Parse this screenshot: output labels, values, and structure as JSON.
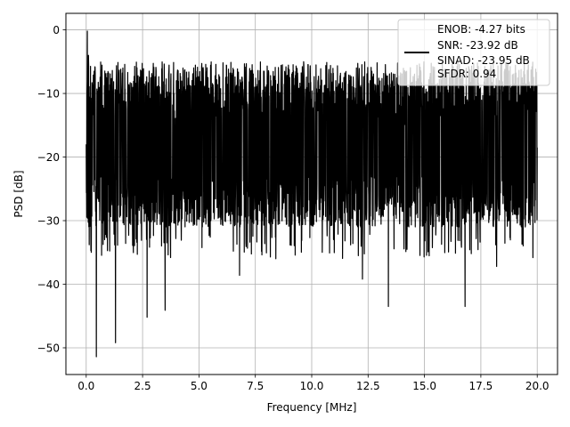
{
  "chart_data": {
    "type": "line",
    "title": "",
    "xlabel": "Frequency [MHz]",
    "ylabel": "PSD [dB]",
    "xlim": [
      -0.9,
      20.9
    ],
    "ylim": [
      -54.2,
      2.6
    ],
    "grid": true,
    "line_color": "#000000",
    "x_ticks": [
      0.0,
      2.5,
      5.0,
      7.5,
      10.0,
      12.5,
      15.0,
      17.5,
      20.0
    ],
    "x_tick_labels": [
      "0.0",
      "2.5",
      "5.0",
      "7.5",
      "10.0",
      "12.5",
      "15.0",
      "17.5",
      "20.0"
    ],
    "y_ticks": [
      0,
      -10,
      -20,
      -30,
      -40,
      -50
    ],
    "y_tick_labels": [
      "0",
      "−10",
      "−20",
      "−30",
      "−40",
      "−50"
    ],
    "legend": {
      "placement": "top-right",
      "entries": [
        "ENOB: -4.27 bits",
        "SNR: -23.92 dB",
        "SINAD: -23.95 dB",
        "SFDR: 0.94"
      ]
    },
    "series": [
      {
        "description_values": "dense noise spectrum; representative per-bin values",
        "x": [
          0.0,
          0.05,
          0.1,
          0.45,
          1.3,
          2.7,
          3.5,
          6.8,
          12.25,
          13.4,
          16.8,
          18.2,
          20.0
        ],
        "y": [
          -18.0,
          -0.2,
          -4.0,
          -51.4,
          -49.2,
          -45.2,
          -44.1,
          -38.6,
          -39.2,
          -43.5,
          -43.5,
          -37.2,
          -18.5
        ],
        "noise_band": {
          "x_start": 0.0,
          "x_end": 20.0,
          "upper_typical": -8.0,
          "upper_max": -5.0,
          "median": -17.0,
          "lower_typical": -27.0,
          "lower_min": -36.0
        }
      }
    ]
  }
}
